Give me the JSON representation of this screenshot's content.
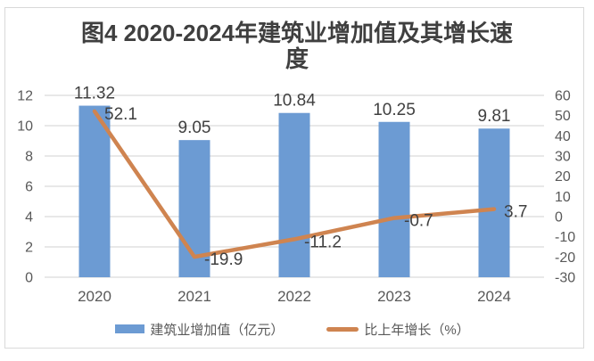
{
  "title": {
    "line1": "图4 2020-2024年建筑业增加值及其增长速",
    "line2": "度"
  },
  "chart_data": {
    "type": "bar+line",
    "title": "图4 2020-2024年建筑业增加值及其增长速度",
    "categories": [
      "2020",
      "2021",
      "2022",
      "2023",
      "2024"
    ],
    "series": [
      {
        "name": "建筑业增加值（亿元）",
        "type": "bar",
        "axis": "left",
        "values": [
          11.32,
          9.05,
          10.84,
          10.25,
          9.81
        ],
        "labels": [
          "11.32",
          "9.05",
          "10.84",
          "10.25",
          "9.81"
        ],
        "color": "#6C9BD3",
        "label_decimals": 2
      },
      {
        "name": "比上年增长（%）",
        "type": "line",
        "axis": "right",
        "values": [
          52.1,
          -19.9,
          -11.2,
          -0.7,
          3.7
        ],
        "labels": [
          "52.1",
          "-19.9",
          "-11.2",
          "-0.7",
          "3.7"
        ],
        "color": "#CF8450",
        "label_decimals": 1
      }
    ],
    "axes": {
      "left": {
        "min": 0,
        "max": 12,
        "step": 2
      },
      "right": {
        "min": -30,
        "max": 60,
        "step": 10
      }
    },
    "grid": true,
    "legend_position": "bottom",
    "colors": {
      "grid": "#d9d9d9",
      "tick_label": "#595959",
      "data_label": "#404040",
      "title": "#3f3f3f",
      "frame_border": "#d9d9d9",
      "background": "#ffffff"
    }
  }
}
